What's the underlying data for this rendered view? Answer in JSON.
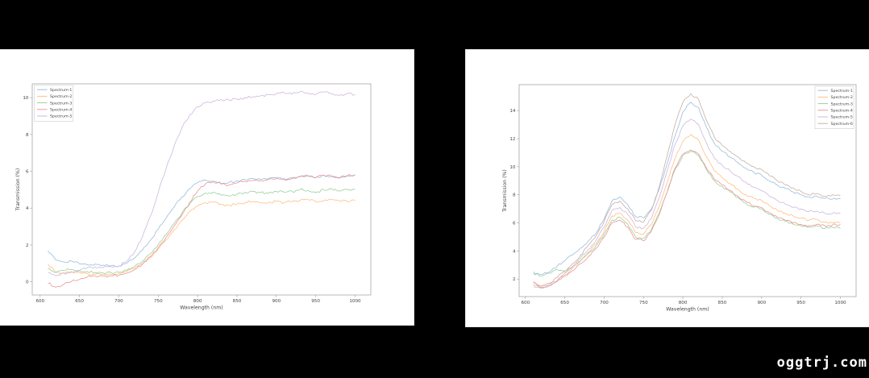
{
  "watermark": {
    "text": "oggtrj.com"
  },
  "colors": {
    "background": "#000000",
    "panel": "#ffffff",
    "spine": "#9a9a9a",
    "legend_border": "#cccccc",
    "text": "#444444"
  },
  "chart_data": [
    {
      "type": "line",
      "title": "",
      "xlabel": "Wavelength (nm)",
      "ylabel": "Transmission (%)",
      "xlim": [
        590,
        1020
      ],
      "ylim": [
        -0.72,
        10.75
      ],
      "xticks": [
        600,
        650,
        700,
        750,
        800,
        850,
        900,
        950,
        1000
      ],
      "yticks": [
        0,
        2,
        4,
        6,
        8,
        10
      ],
      "grid": false,
      "legend_position": "upper-left",
      "x": [
        610,
        620,
        630,
        640,
        650,
        660,
        670,
        680,
        690,
        700,
        710,
        720,
        730,
        740,
        750,
        760,
        770,
        780,
        790,
        800,
        810,
        820,
        830,
        840,
        850,
        860,
        870,
        880,
        890,
        900,
        910,
        920,
        930,
        940,
        950,
        960,
        970,
        980,
        990,
        1000
      ],
      "series": [
        {
          "name": "Spectrum-1",
          "color": "#92b9da",
          "values": [
            1.68,
            1.18,
            1.08,
            1.12,
            0.97,
            0.92,
            0.96,
            0.9,
            0.87,
            0.86,
            1.0,
            1.28,
            1.72,
            2.25,
            2.85,
            3.45,
            4.05,
            4.6,
            5.05,
            5.38,
            5.52,
            5.45,
            5.32,
            5.4,
            5.48,
            5.55,
            5.6,
            5.55,
            5.62,
            5.66,
            5.6,
            5.66,
            5.72,
            5.76,
            5.64,
            5.8,
            5.72,
            5.62,
            5.76,
            5.8
          ]
        },
        {
          "name": "Spectrum-2",
          "color": "#ffbb7a",
          "values": [
            0.95,
            0.52,
            0.48,
            0.55,
            0.5,
            0.44,
            0.4,
            0.38,
            0.4,
            0.46,
            0.56,
            0.72,
            0.98,
            1.32,
            1.78,
            2.28,
            2.82,
            3.32,
            3.82,
            4.12,
            4.28,
            4.32,
            4.2,
            4.15,
            4.22,
            4.3,
            4.36,
            4.3,
            4.32,
            4.36,
            4.3,
            4.36,
            4.42,
            4.46,
            4.34,
            4.4,
            4.46,
            4.4,
            4.36,
            4.42
          ]
        },
        {
          "name": "Spectrum-3",
          "color": "#95cd95",
          "values": [
            0.72,
            0.5,
            0.62,
            0.66,
            0.6,
            0.55,
            0.5,
            0.48,
            0.5,
            0.52,
            0.62,
            0.82,
            1.12,
            1.52,
            2.02,
            2.56,
            3.16,
            3.72,
            4.22,
            4.62,
            4.82,
            4.86,
            4.7,
            4.66,
            4.76,
            4.86,
            4.9,
            4.84,
            4.8,
            4.9,
            4.86,
            4.9,
            5.0,
            4.96,
            4.84,
            5.0,
            5.06,
            4.94,
            5.0,
            5.02
          ]
        },
        {
          "name": "Spectrum-4",
          "color": "#e98f90",
          "values": [
            -0.08,
            -0.3,
            -0.14,
            0.02,
            0.12,
            0.26,
            0.3,
            0.3,
            0.32,
            0.36,
            0.46,
            0.66,
            0.96,
            1.36,
            1.86,
            2.42,
            3.02,
            3.62,
            4.32,
            4.92,
            5.32,
            5.45,
            5.3,
            5.26,
            5.36,
            5.46,
            5.5,
            5.5,
            5.56,
            5.6,
            5.54,
            5.6,
            5.7,
            5.76,
            5.66,
            5.8,
            5.74,
            5.66,
            5.76,
            5.82
          ]
        },
        {
          "name": "Spectrum-5",
          "color": "#c9b3dd",
          "values": [
            0.5,
            0.32,
            0.46,
            0.52,
            0.62,
            0.76,
            0.8,
            0.76,
            0.82,
            0.86,
            1.12,
            1.62,
            2.45,
            3.55,
            4.85,
            6.15,
            7.35,
            8.35,
            9.05,
            9.5,
            9.72,
            9.82,
            9.9,
            9.86,
            9.92,
            10.0,
            10.06,
            10.1,
            10.16,
            10.22,
            10.26,
            10.2,
            10.32,
            10.26,
            10.16,
            10.3,
            10.22,
            10.12,
            10.22,
            10.15
          ]
        }
      ]
    },
    {
      "type": "line",
      "title": "",
      "xlabel": "Wavelength (nm)",
      "ylabel": "Transmission (%)",
      "xlim": [
        592,
        1020
      ],
      "ylim": [
        0.75,
        15.85
      ],
      "xticks": [
        600,
        650,
        700,
        750,
        800,
        850,
        900,
        950,
        1000
      ],
      "yticks": [
        2,
        4,
        6,
        8,
        10,
        12,
        14
      ],
      "grid": false,
      "legend_position": "upper-right",
      "x": [
        610,
        620,
        630,
        640,
        650,
        660,
        670,
        680,
        690,
        700,
        710,
        720,
        730,
        740,
        750,
        760,
        770,
        780,
        790,
        800,
        810,
        820,
        830,
        840,
        850,
        860,
        870,
        880,
        890,
        900,
        910,
        920,
        930,
        940,
        950,
        960,
        970,
        980,
        990,
        1000
      ],
      "series": [
        {
          "name": "Spectrum-1",
          "color": "#92b9da",
          "values": [
            2.4,
            2.32,
            2.5,
            2.9,
            3.3,
            3.72,
            4.2,
            4.72,
            5.3,
            6.3,
            7.6,
            7.85,
            7.3,
            6.45,
            6.35,
            7.0,
            8.4,
            10.2,
            12.2,
            13.9,
            14.6,
            14.2,
            12.8,
            11.65,
            11.1,
            10.7,
            10.3,
            9.9,
            9.6,
            9.4,
            9.0,
            8.7,
            8.45,
            8.2,
            8.0,
            7.85,
            7.9,
            7.75,
            7.7,
            7.72
          ]
        },
        {
          "name": "Spectrum-2",
          "color": "#ffbb7a",
          "values": [
            1.7,
            1.5,
            1.62,
            1.9,
            2.3,
            2.78,
            3.3,
            3.9,
            4.5,
            5.4,
            6.5,
            6.7,
            6.2,
            5.3,
            5.2,
            5.9,
            7.2,
            8.9,
            10.6,
            11.8,
            12.3,
            11.9,
            10.7,
            9.7,
            9.2,
            8.8,
            8.4,
            8.0,
            7.75,
            7.6,
            7.2,
            6.9,
            6.7,
            6.5,
            6.35,
            6.2,
            6.25,
            6.05,
            6.0,
            6.02
          ]
        },
        {
          "name": "Spectrum-3",
          "color": "#95cd95",
          "values": [
            2.52,
            2.2,
            2.42,
            2.7,
            2.5,
            2.9,
            3.3,
            3.82,
            4.4,
            5.2,
            6.2,
            6.4,
            5.9,
            5.0,
            4.9,
            5.55,
            6.7,
            8.2,
            9.8,
            10.8,
            11.1,
            10.8,
            9.8,
            9.0,
            8.6,
            8.2,
            7.8,
            7.4,
            7.12,
            7.0,
            6.6,
            6.32,
            6.1,
            5.9,
            5.8,
            5.7,
            5.8,
            5.6,
            5.7,
            5.62
          ]
        },
        {
          "name": "Spectrum-4",
          "color": "#e98f90",
          "values": [
            1.82,
            1.4,
            1.52,
            1.8,
            2.2,
            2.6,
            3.1,
            3.62,
            4.2,
            5.0,
            6.0,
            6.2,
            5.7,
            4.82,
            4.72,
            5.4,
            6.6,
            8.2,
            9.9,
            10.9,
            11.2,
            10.9,
            9.9,
            9.1,
            8.7,
            8.3,
            7.9,
            7.5,
            7.2,
            7.1,
            6.7,
            6.4,
            6.2,
            6.0,
            5.9,
            5.8,
            5.9,
            5.8,
            5.85,
            5.9
          ]
        },
        {
          "name": "Spectrum-5",
          "color": "#c9b3dd",
          "values": [
            1.45,
            1.35,
            1.5,
            1.9,
            2.4,
            2.9,
            3.5,
            4.1,
            4.8,
            5.7,
            6.9,
            7.1,
            6.6,
            5.72,
            5.62,
            6.3,
            7.8,
            9.7,
            11.6,
            12.9,
            13.4,
            13.0,
            11.7,
            10.6,
            10.1,
            9.7,
            9.3,
            8.9,
            8.55,
            8.3,
            7.9,
            7.6,
            7.35,
            7.1,
            7.0,
            6.8,
            6.85,
            6.7,
            6.68,
            6.7
          ]
        },
        {
          "name": "Spectrum-6",
          "color": "#c6a99f",
          "values": [
            1.6,
            1.48,
            1.7,
            2.1,
            2.6,
            3.1,
            3.7,
            4.4,
            5.1,
            6.1,
            7.3,
            7.55,
            7.0,
            6.15,
            6.05,
            6.9,
            8.6,
            10.8,
            13.0,
            14.6,
            15.2,
            14.8,
            13.3,
            12.1,
            11.5,
            11.1,
            10.7,
            10.3,
            10.0,
            9.8,
            9.35,
            9.0,
            8.7,
            8.5,
            8.25,
            8.0,
            8.1,
            7.9,
            8.0,
            7.95
          ]
        }
      ]
    }
  ]
}
